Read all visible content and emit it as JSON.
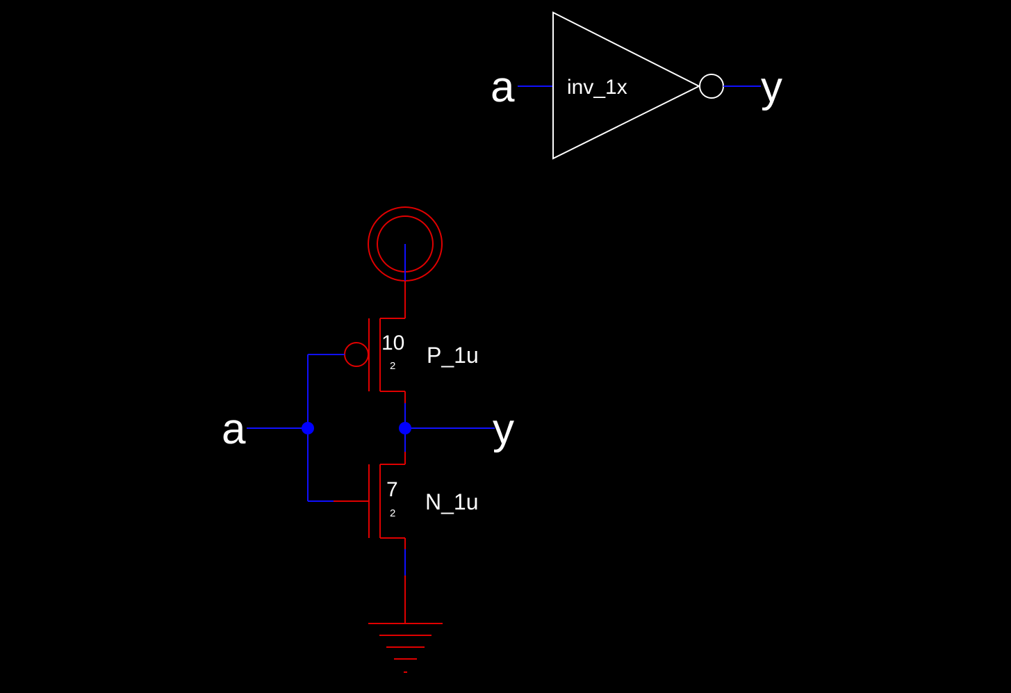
{
  "colors": {
    "background": "#000000",
    "wire": "#1010ff",
    "node": "#0000ff",
    "device": "#e00000",
    "symbol": "#ffffff",
    "text": "#ffffff"
  },
  "symbol": {
    "cell_name": "inv_1x",
    "input_pin": "a",
    "output_pin": "y"
  },
  "schematic": {
    "input_net": "a",
    "output_net": "y",
    "pmos": {
      "width": "10",
      "length": "2",
      "model": "P_1u"
    },
    "nmos": {
      "width": "7",
      "length": "2",
      "model": "N_1u"
    },
    "supply_icon": "vdd-double-circle-icon",
    "ground_icon": "ground-icon"
  }
}
